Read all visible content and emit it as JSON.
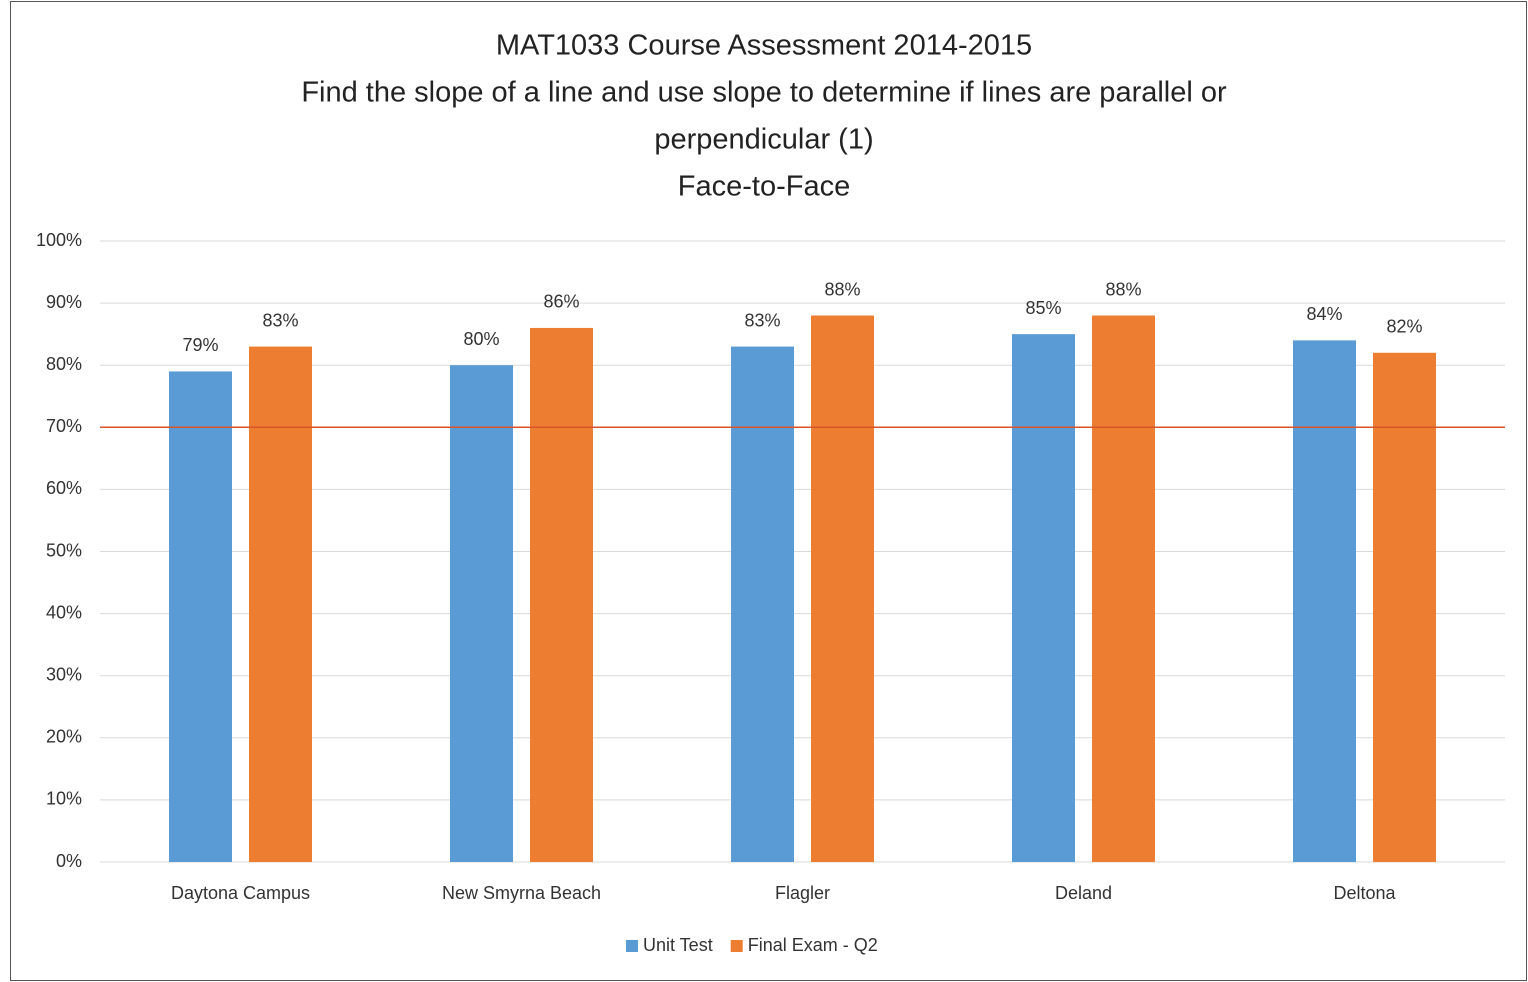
{
  "chart_data": {
    "type": "bar",
    "title": [
      "MAT1033 Course Assessment 2014-2015",
      "Find the slope of a line and use slope to determine if lines are parallel or",
      "perpendicular (1)",
      "Face-to-Face"
    ],
    "categories": [
      "Daytona Campus",
      "New Smyrna Beach",
      "Flagler",
      "Deland",
      "Deltona"
    ],
    "series": [
      {
        "name": "Unit Test",
        "color": "#5b9bd5",
        "values": [
          79,
          80,
          83,
          85,
          84
        ],
        "value_labels": [
          "79%",
          "80%",
          "83%",
          "85%",
          "84%"
        ]
      },
      {
        "name": "Final Exam - Q2",
        "color": "#ed7d31",
        "values": [
          83,
          86,
          88,
          88,
          82
        ],
        "value_labels": [
          "83%",
          "86%",
          "88%",
          "88%",
          "82%"
        ]
      }
    ],
    "reference_line": {
      "value": 70,
      "color": "#d9532b"
    },
    "ylim": [
      0,
      100
    ],
    "yticks": [
      {
        "value": 0,
        "label": "0%"
      },
      {
        "value": 10,
        "label": "10%"
      },
      {
        "value": 20,
        "label": "20%"
      },
      {
        "value": 30,
        "label": "30%"
      },
      {
        "value": 40,
        "label": "40%"
      },
      {
        "value": 50,
        "label": "50%"
      },
      {
        "value": 60,
        "label": "60%"
      },
      {
        "value": 70,
        "label": "70%"
      },
      {
        "value": 80,
        "label": "80%"
      },
      {
        "value": 90,
        "label": "90%"
      },
      {
        "value": 100,
        "label": "100%"
      }
    ],
    "grid": true,
    "legend": "bottom"
  }
}
